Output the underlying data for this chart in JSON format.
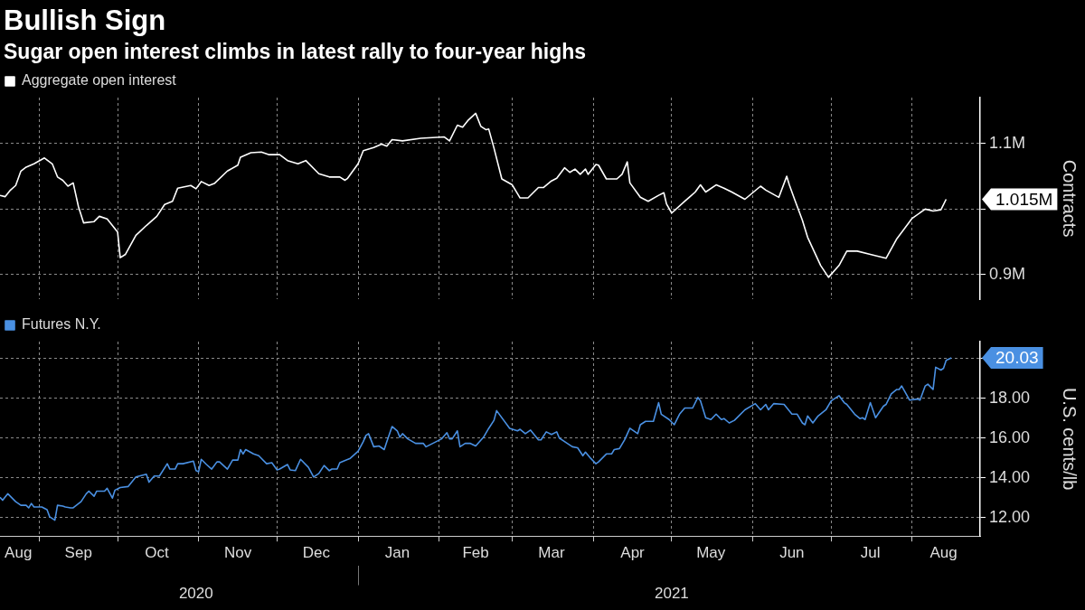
{
  "chart_data": [
    {
      "type": "line",
      "title": "Bullish Sign",
      "subtitle": "Sugar open interest climbs in latest rally to four-year highs",
      "ylabel": "Contracts",
      "legend": "top left",
      "grid": true,
      "tick_labels": "y",
      "xlim": [
        "2020-08-17",
        "2021-08-27"
      ],
      "xticks": [
        {
          "value": "2020-09-01",
          "label": null
        },
        {
          "value": "2020-10-01",
          "label": null
        },
        {
          "value": "2020-11-01",
          "label": null
        },
        {
          "value": "2020-12-01",
          "label": null
        },
        {
          "value": "2021-01-01",
          "label": null
        },
        {
          "value": "2021-02-01",
          "label": null
        },
        {
          "value": "2021-03-01",
          "label": null
        },
        {
          "value": "2021-04-01",
          "label": null
        },
        {
          "value": "2021-05-01",
          "label": null
        },
        {
          "value": "2021-06-01",
          "label": null
        },
        {
          "value": "2021-07-01",
          "label": null
        },
        {
          "value": "2021-08-01",
          "label": null
        }
      ],
      "ylim": [
        862500,
        1170000
      ],
      "yticks": [
        {
          "value": 900000,
          "label": "0.9M"
        },
        {
          "value": 1000000,
          "label": null
        },
        {
          "value": 1100000,
          "label": "1.1M"
        }
      ],
      "annotations": [
        {
          "text": "1.015M",
          "x": "2021-08-14",
          "y": 1015000
        }
      ],
      "series": [
        {
          "name": "Aggregate open interest",
          "color": "#ffffff",
          "x": [
            "2020-08-17",
            "2020-08-19",
            "2020-08-21",
            "2020-08-23",
            "2020-08-25",
            "2020-08-27",
            "2020-08-30",
            "2020-09-03",
            "2020-09-06",
            "2020-09-08",
            "2020-09-10",
            "2020-09-12",
            "2020-09-14",
            "2020-09-16",
            "2020-09-18",
            "2020-09-22",
            "2020-09-24",
            "2020-09-27",
            "2020-09-29",
            "2020-10-01",
            "2020-10-02",
            "2020-10-04",
            "2020-10-08",
            "2020-10-12",
            "2020-10-16",
            "2020-10-19",
            "2020-10-22",
            "2020-10-24",
            "2020-10-29",
            "2020-10-31",
            "2020-11-02",
            "2020-11-05",
            "2020-11-07",
            "2020-11-12",
            "2020-11-16",
            "2020-11-17",
            "2020-11-21",
            "2020-11-25",
            "2020-11-28",
            "2020-12-02",
            "2020-12-05",
            "2020-12-09",
            "2020-12-12",
            "2020-12-17",
            "2020-12-21",
            "2020-12-25",
            "2020-12-27",
            "2020-12-28",
            "2021-01-01",
            "2021-01-03",
            "2021-01-07",
            "2021-01-10",
            "2021-01-12",
            "2021-01-14",
            "2021-01-18",
            "2021-01-25",
            "2021-02-03",
            "2021-02-05",
            "2021-02-08",
            "2021-02-10",
            "2021-02-12",
            "2021-02-15",
            "2021-02-17",
            "2021-02-19",
            "2021-02-20",
            "2021-02-22",
            "2021-02-25",
            "2021-03-01",
            "2021-03-04",
            "2021-03-07",
            "2021-03-11",
            "2021-03-13",
            "2021-03-16",
            "2021-03-18",
            "2021-03-21",
            "2021-03-23",
            "2021-03-25",
            "2021-03-27",
            "2021-03-29",
            "2021-03-30",
            "2021-04-02",
            "2021-04-03",
            "2021-04-06",
            "2021-04-10",
            "2021-04-12",
            "2021-04-14",
            "2021-04-15",
            "2021-04-19",
            "2021-04-22",
            "2021-04-26",
            "2021-04-28",
            "2021-04-29",
            "2021-05-01",
            "2021-05-06",
            "2021-05-10",
            "2021-05-12",
            "2021-05-14",
            "2021-05-18",
            "2021-05-21",
            "2021-05-24",
            "2021-05-29",
            "2021-06-04",
            "2021-06-06",
            "2021-06-11",
            "2021-06-14",
            "2021-06-15",
            "2021-06-17",
            "2021-06-20",
            "2021-06-22",
            "2021-06-27",
            "2021-06-30",
            "2021-07-04",
            "2021-07-07",
            "2021-07-11",
            "2021-07-16",
            "2021-07-22",
            "2021-07-26",
            "2021-08-01",
            "2021-08-06",
            "2021-08-09",
            "2021-08-12",
            "2021-08-14"
          ],
          "values": [
            1021000,
            1019000,
            1029000,
            1036000,
            1058000,
            1064000,
            1069000,
            1078000,
            1069000,
            1049000,
            1044000,
            1035000,
            1040000,
            1004000,
            979000,
            981000,
            989000,
            985000,
            975000,
            965000,
            926000,
            931000,
            960000,
            975000,
            989000,
            1007000,
            1012000,
            1032000,
            1036000,
            1031000,
            1042000,
            1036000,
            1039000,
            1058000,
            1067000,
            1079000,
            1086000,
            1087000,
            1083000,
            1083000,
            1074000,
            1069000,
            1074000,
            1054000,
            1049000,
            1049000,
            1044000,
            1047000,
            1069000,
            1089000,
            1094000,
            1099000,
            1096000,
            1106000,
            1104000,
            1108000,
            1110000,
            1104000,
            1128000,
            1125000,
            1135000,
            1146000,
            1126000,
            1121000,
            1122000,
            1093000,
            1046000,
            1037000,
            1017000,
            1017000,
            1033000,
            1033000,
            1043000,
            1047000,
            1063000,
            1056000,
            1061000,
            1053000,
            1061000,
            1053000,
            1068000,
            1067000,
            1046000,
            1046000,
            1053000,
            1072000,
            1040000,
            1018000,
            1012000,
            1021000,
            1025000,
            1008000,
            994000,
            1012000,
            1026000,
            1037000,
            1026000,
            1037000,
            1032000,
            1026000,
            1015000,
            1035000,
            1029000,
            1018000,
            1050000,
            1037000,
            1015000,
            983000,
            957000,
            914000,
            896000,
            914000,
            936000,
            936000,
            931000,
            925000,
            954000,
            986000,
            1000000,
            997000,
            999000,
            1015000
          ]
        }
      ]
    },
    {
      "type": "line",
      "ylabel": "U.S. cents/lb",
      "legend": "top left",
      "grid": true,
      "xlim": [
        "2020-08-17",
        "2021-08-27"
      ],
      "xticks": [
        {
          "value": "2020-08-24",
          "label": "Aug"
        },
        {
          "value": "2020-09-01",
          "label": null
        },
        {
          "value": "2020-09-16",
          "label": "Sep"
        },
        {
          "value": "2020-10-01",
          "label": null
        },
        {
          "value": "2020-10-16",
          "label": "Oct"
        },
        {
          "value": "2020-11-01",
          "label": null
        },
        {
          "value": "2020-11-16",
          "label": "Nov"
        },
        {
          "value": "2020-12-01",
          "label": null
        },
        {
          "value": "2020-12-16",
          "label": "Dec"
        },
        {
          "value": "2021-01-01",
          "label": null
        },
        {
          "value": "2021-01-16",
          "label": "Jan"
        },
        {
          "value": "2021-02-01",
          "label": null
        },
        {
          "value": "2021-02-15",
          "label": "Feb"
        },
        {
          "value": "2021-03-01",
          "label": null
        },
        {
          "value": "2021-03-16",
          "label": "Mar"
        },
        {
          "value": "2021-04-01",
          "label": null
        },
        {
          "value": "2021-04-16",
          "label": "Apr"
        },
        {
          "value": "2021-05-01",
          "label": null
        },
        {
          "value": "2021-05-16",
          "label": "May"
        },
        {
          "value": "2021-06-01",
          "label": null
        },
        {
          "value": "2021-06-16",
          "label": "Jun"
        },
        {
          "value": "2021-07-01",
          "label": null
        },
        {
          "value": "2021-07-16",
          "label": "Jul"
        },
        {
          "value": "2021-08-01",
          "label": null
        },
        {
          "value": "2021-08-13",
          "label": "Aug"
        }
      ],
      "x2lim": [
        "2020-08-17",
        "2021-08-27"
      ],
      "x2ticks": [
        {
          "value": "2020-10-31",
          "label": "2020"
        },
        {
          "value": "2021-01-01",
          "label": null
        },
        {
          "value": "2021-05-01",
          "label": "2021"
        }
      ],
      "ylim": [
        11.07,
        20.85
      ],
      "yticks": [
        {
          "value": 12,
          "label": "12.00"
        },
        {
          "value": 14,
          "label": "14.00"
        },
        {
          "value": 16,
          "label": "16.00"
        },
        {
          "value": 18,
          "label": "18.00"
        },
        {
          "value": 20,
          "label": null
        }
      ],
      "annotations": [
        {
          "text": "20.03",
          "x": "2021-08-16",
          "y": 20.03
        }
      ],
      "series": [
        {
          "name": "Futures N.Y.",
          "color": "#4a90e2",
          "x": [
            "2020-08-17",
            "2020-08-18",
            "2020-08-20",
            "2020-08-23",
            "2020-08-25",
            "2020-08-27",
            "2020-08-28",
            "2020-08-29",
            "2020-08-30",
            "2020-09-02",
            "2020-09-04",
            "2020-09-05",
            "2020-09-07",
            "2020-09-08",
            "2020-09-10",
            "2020-09-11",
            "2020-09-13",
            "2020-09-14",
            "2020-09-17",
            "2020-09-19",
            "2020-09-20",
            "2020-09-22",
            "2020-09-23",
            "2020-09-26",
            "2020-09-27",
            "2020-09-29",
            "2020-09-30",
            "2020-10-02",
            "2020-10-05",
            "2020-10-08",
            "2020-10-12",
            "2020-10-13",
            "2020-10-15",
            "2020-10-17",
            "2020-10-20",
            "2020-10-21",
            "2020-10-23",
            "2020-10-24",
            "2020-10-26",
            "2020-10-30",
            "2020-10-31",
            "2020-11-01",
            "2020-11-02",
            "2020-11-04",
            "2020-11-06",
            "2020-11-08",
            "2020-11-09",
            "2020-11-12",
            "2020-11-14",
            "2020-11-16",
            "2020-11-17",
            "2020-11-18",
            "2020-11-19",
            "2020-11-22",
            "2020-11-24",
            "2020-11-27",
            "2020-11-29",
            "2020-12-01",
            "2020-12-02",
            "2020-12-05",
            "2020-12-06",
            "2020-12-08",
            "2020-12-10",
            "2020-12-13",
            "2020-12-15",
            "2020-12-17",
            "2020-12-19",
            "2020-12-21",
            "2020-12-22",
            "2020-12-24",
            "2020-12-25",
            "2020-12-29",
            "2021-01-01",
            "2021-01-03",
            "2021-01-04",
            "2021-01-05",
            "2021-01-07",
            "2021-01-09",
            "2021-01-11",
            "2021-01-12",
            "2021-01-14",
            "2021-01-16",
            "2021-01-17",
            "2021-01-18",
            "2021-01-20",
            "2021-01-23",
            "2021-01-26",
            "2021-01-27",
            "2021-02-02",
            "2021-02-04",
            "2021-02-05",
            "2021-02-06",
            "2021-02-08",
            "2021-02-09",
            "2021-02-11",
            "2021-02-13",
            "2021-02-15",
            "2021-02-18",
            "2021-02-20",
            "2021-02-22",
            "2021-02-23",
            "2021-02-28",
            "2021-03-03",
            "2021-03-04",
            "2021-03-06",
            "2021-03-08",
            "2021-03-11",
            "2021-03-12",
            "2021-03-14",
            "2021-03-16",
            "2021-03-18",
            "2021-03-19",
            "2021-03-21",
            "2021-03-24",
            "2021-03-26",
            "2021-03-28",
            "2021-03-29",
            "2021-03-31",
            "2021-04-02",
            "2021-04-03",
            "2021-04-06",
            "2021-04-08",
            "2021-04-09",
            "2021-04-11",
            "2021-04-13",
            "2021-04-15",
            "2021-04-18",
            "2021-04-19",
            "2021-04-21",
            "2021-04-24",
            "2021-04-26",
            "2021-04-27",
            "2021-04-30",
            "2021-05-02",
            "2021-05-04",
            "2021-05-06",
            "2021-05-09",
            "2021-05-11",
            "2021-05-12",
            "2021-05-14",
            "2021-05-16",
            "2021-05-18",
            "2021-05-20",
            "2021-05-21",
            "2021-05-23",
            "2021-05-25",
            "2021-05-29",
            "2021-06-02",
            "2021-06-04",
            "2021-06-06",
            "2021-06-07",
            "2021-06-09",
            "2021-06-13",
            "2021-06-16",
            "2021-06-18",
            "2021-06-20",
            "2021-06-21",
            "2021-06-22",
            "2021-06-24",
            "2021-06-26",
            "2021-06-29",
            "2021-07-01",
            "2021-07-04",
            "2021-07-06",
            "2021-07-07",
            "2021-07-10",
            "2021-07-12",
            "2021-07-13",
            "2021-07-14",
            "2021-07-16",
            "2021-07-18",
            "2021-07-21",
            "2021-07-22",
            "2021-07-24",
            "2021-07-26",
            "2021-07-27",
            "2021-07-28",
            "2021-07-31",
            "2021-08-03",
            "2021-08-04",
            "2021-08-06",
            "2021-08-07",
            "2021-08-09",
            "2021-08-10",
            "2021-08-12",
            "2021-08-13",
            "2021-08-14",
            "2021-08-16"
          ],
          "values": [
            13.02,
            12.87,
            13.2,
            12.8,
            12.62,
            12.62,
            12.49,
            12.71,
            12.53,
            12.53,
            12.4,
            12.04,
            11.87,
            12.62,
            12.58,
            12.53,
            12.49,
            12.49,
            12.8,
            13.2,
            13.33,
            13.07,
            13.33,
            13.33,
            13.47,
            12.98,
            13.38,
            13.51,
            13.56,
            14.04,
            14.18,
            13.78,
            14.09,
            14.09,
            14.71,
            14.44,
            14.44,
            14.71,
            14.71,
            14.84,
            14.36,
            14.31,
            14.93,
            14.67,
            14.44,
            14.8,
            14.8,
            14.44,
            14.89,
            14.89,
            15.42,
            15.2,
            15.42,
            15.2,
            15.11,
            14.71,
            14.76,
            14.4,
            14.44,
            14.67,
            14.4,
            14.36,
            14.93,
            14.53,
            14.04,
            14.22,
            14.62,
            14.36,
            14.44,
            14.44,
            14.76,
            14.98,
            15.33,
            15.82,
            16.13,
            16.22,
            15.56,
            15.6,
            15.42,
            15.82,
            16.58,
            16.36,
            16.04,
            16.22,
            15.96,
            15.73,
            15.73,
            15.56,
            15.96,
            16.27,
            15.96,
            15.96,
            16.36,
            15.56,
            15.73,
            15.73,
            15.6,
            16.04,
            16.49,
            16.89,
            17.38,
            16.49,
            16.36,
            16.44,
            16.22,
            16.4,
            15.91,
            15.91,
            16.31,
            16.18,
            16.31,
            16.0,
            15.82,
            15.56,
            15.51,
            15.11,
            15.29,
            14.98,
            14.71,
            14.8,
            15.2,
            15.2,
            15.42,
            15.47,
            15.91,
            16.49,
            16.22,
            16.67,
            16.84,
            16.84,
            17.78,
            17.2,
            16.93,
            16.67,
            17.2,
            17.51,
            17.51,
            18.04,
            17.87,
            17.02,
            16.93,
            17.2,
            16.93,
            16.98,
            16.76,
            16.89,
            17.42,
            17.73,
            17.42,
            17.69,
            17.42,
            17.73,
            17.69,
            17.2,
            17.2,
            16.76,
            16.67,
            17.11,
            16.76,
            17.11,
            17.42,
            17.87,
            18.13,
            17.78,
            17.69,
            17.2,
            16.98,
            17.02,
            16.93,
            17.78,
            17.02,
            17.6,
            17.69,
            18.22,
            18.44,
            18.44,
            18.62,
            17.91,
            17.96,
            17.91,
            18.62,
            18.71,
            18.44,
            19.56,
            19.42,
            19.51,
            19.91,
            20.03
          ]
        }
      ]
    }
  ]
}
